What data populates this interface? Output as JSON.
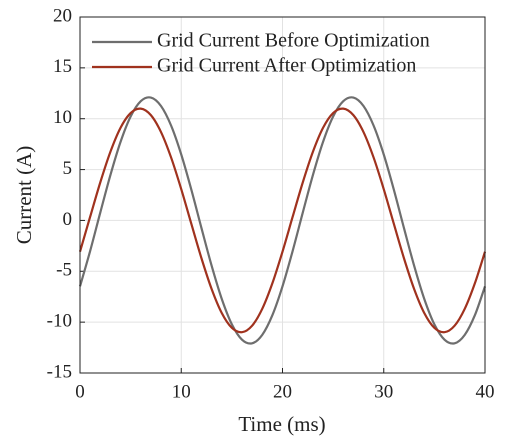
{
  "chart_data": {
    "type": "line",
    "x": [
      0,
      1,
      2,
      3,
      4,
      5,
      6,
      7,
      8,
      9,
      10,
      11,
      12,
      13,
      14,
      15,
      16,
      17,
      18,
      19,
      20,
      21,
      22,
      23,
      24,
      25,
      26,
      27,
      28,
      29,
      30,
      31,
      32,
      33,
      34,
      35,
      36,
      37,
      38,
      39,
      40
    ],
    "series": [
      {
        "name": "Grid Current Before Optimization",
        "color": "#6e6e6e",
        "values": [
          -6.48,
          -3.01,
          0.76,
          4.45,
          7.71,
          10.22,
          11.72,
          12.08,
          11.25,
          9.32,
          6.48,
          3.01,
          -0.76,
          -4.45,
          -7.71,
          -10.22,
          -11.72,
          -12.08,
          -11.25,
          -9.32,
          -6.48,
          -3.01,
          0.76,
          4.45,
          7.71,
          10.22,
          11.72,
          12.08,
          11.25,
          9.32,
          6.48,
          3.01,
          -0.76,
          -4.45,
          -7.71,
          -10.22,
          -11.72,
          -12.08,
          -11.25,
          -9.32,
          -6.48
        ]
      },
      {
        "name": "Grid Current After Optimization",
        "color": "#a0321e",
        "values": [
          -3.07,
          0.35,
          3.73,
          6.74,
          9.1,
          10.56,
          10.99,
          10.35,
          8.69,
          6.18,
          3.07,
          -0.35,
          -3.73,
          -6.74,
          -9.1,
          -10.56,
          -10.99,
          -10.35,
          -8.69,
          -6.18,
          -3.07,
          0.35,
          3.73,
          6.74,
          9.1,
          10.56,
          10.99,
          10.35,
          8.69,
          6.18,
          3.07,
          -0.35,
          -3.73,
          -6.74,
          -9.1,
          -10.56,
          -10.99,
          -10.35,
          -8.69,
          -6.18,
          -3.07
        ]
      }
    ],
    "x_label": "Time (ms)",
    "y_label": "Current (A)",
    "xlim": [
      0,
      40
    ],
    "xticks": [
      0,
      10,
      20,
      30,
      40
    ],
    "ylim": [
      -15,
      20
    ],
    "yticks": [
      -15,
      -10,
      -5,
      0,
      5,
      10,
      15,
      20
    ],
    "grid": true,
    "legend": "upper left"
  }
}
